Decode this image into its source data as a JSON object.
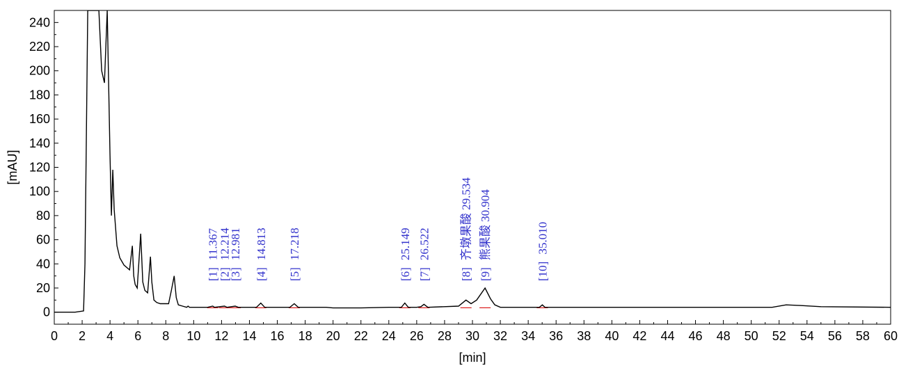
{
  "chart_data": {
    "type": "line",
    "title": "",
    "xlabel": "[min]",
    "ylabel": "[mAU]",
    "xlim": [
      0,
      60
    ],
    "ylim": [
      -10,
      250
    ],
    "xticks": [
      0,
      2,
      4,
      6,
      8,
      10,
      12,
      14,
      16,
      18,
      20,
      22,
      24,
      26,
      28,
      30,
      32,
      34,
      36,
      38,
      40,
      42,
      44,
      46,
      48,
      50,
      52,
      54,
      56,
      58,
      60
    ],
    "yticks": [
      0,
      20,
      40,
      60,
      80,
      100,
      120,
      140,
      160,
      180,
      200,
      220,
      240
    ],
    "grid": false,
    "colors": {
      "trace": "#000000",
      "label": "#3333cc",
      "baseline": "#dd2222",
      "frame": "#000000"
    },
    "series": [
      {
        "x": [
          0,
          1.5,
          2.1,
          2.2,
          2.4,
          2.8,
          3.0,
          3.2,
          3.4,
          3.6,
          3.8,
          4.0,
          4.1,
          4.2,
          4.3,
          4.4,
          4.5,
          4.7,
          5.0,
          5.4,
          5.6,
          5.7,
          5.8,
          5.95,
          6.2,
          6.35,
          6.5,
          6.7,
          6.9,
          7.0,
          7.15,
          7.35,
          7.6,
          8.2,
          8.4,
          8.6,
          8.75,
          8.9,
          9.2,
          9.5,
          9.6,
          9.7,
          10,
          11,
          11.367,
          11.5,
          12.214,
          12.4,
          12.981,
          13.2,
          14.5,
          14.813,
          15.1,
          16.9,
          17.218,
          17.5,
          19.5,
          20,
          22,
          24,
          24.9,
          25.149,
          25.4,
          26,
          26.3,
          26.522,
          26.8,
          29.0,
          29.534,
          29.9,
          30.3,
          30.904,
          31.3,
          31.6,
          32.0,
          33.0,
          34.8,
          35.01,
          35.2,
          36,
          40,
          45,
          50,
          51.5,
          52.5,
          53.5,
          55,
          60
        ],
        "y": [
          0,
          0,
          1,
          40,
          250,
          250,
          250,
          250,
          200,
          190,
          250,
          130,
          80,
          118,
          85,
          70,
          55,
          45,
          39,
          35,
          55,
          30,
          23,
          20,
          65,
          25,
          18,
          16,
          46,
          25,
          10,
          8,
          7,
          7,
          18,
          30,
          12,
          6,
          5,
          4,
          5,
          4,
          4,
          4,
          5,
          4,
          5,
          4,
          5,
          4,
          4,
          7.5,
          4,
          4,
          7,
          4,
          4,
          3.5,
          3.5,
          4,
          4,
          7.5,
          4,
          4,
          4.5,
          6.5,
          4,
          5,
          10,
          7,
          10,
          20,
          11,
          6,
          4,
          4,
          4,
          6,
          4,
          4,
          4,
          4,
          4,
          4,
          6,
          5.5,
          4.5,
          4
        ]
      }
    ],
    "peak_labels": [
      {
        "index": "[1]",
        "text": "11.367",
        "x": 11.367
      },
      {
        "index": "[2]",
        "text": "12.214",
        "x": 12.214
      },
      {
        "index": "[3]",
        "text": "12.981",
        "x": 12.981
      },
      {
        "index": "[4]",
        "text": "14.813",
        "x": 14.813
      },
      {
        "index": "[5]",
        "text": "17.218",
        "x": 17.218
      },
      {
        "index": "[6]",
        "text": "25.149",
        "x": 25.149
      },
      {
        "index": "[7]",
        "text": "26.522",
        "x": 26.522
      },
      {
        "index": "[8]",
        "text": "齐墩果酸 29.534",
        "x": 29.534
      },
      {
        "index": "[9]",
        "text": "熊果酸 30.904",
        "x": 30.904
      },
      {
        "index": "[10]",
        "text": "35.010",
        "x": 35.01
      }
    ]
  }
}
